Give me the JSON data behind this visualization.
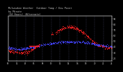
{
  "title_line1": "Milwaukee Weather  Outdoor Temp / Dew Point",
  "title_line2": "by Minute",
  "title_line3": "(24 Hours) (Alternate)",
  "temp_color": "#ff2222",
  "dewpoint_color": "#4444ff",
  "background_color": "#000000",
  "plot_bg_color": "#000000",
  "grid_color": "#444466",
  "text_color": "#cccccc",
  "ylabel_right_labels": [
    "90",
    "80",
    "70",
    "60",
    "50",
    "40",
    "30",
    "20"
  ],
  "ylabel_right_values": [
    90,
    80,
    70,
    60,
    50,
    40,
    30,
    20
  ],
  "xlim": [
    0,
    1440
  ],
  "ylim": [
    15,
    95
  ],
  "num_minutes": 1440,
  "grid_positions": [
    0,
    120,
    240,
    360,
    480,
    600,
    720,
    840,
    960,
    1080,
    1200,
    1320,
    1440
  ]
}
